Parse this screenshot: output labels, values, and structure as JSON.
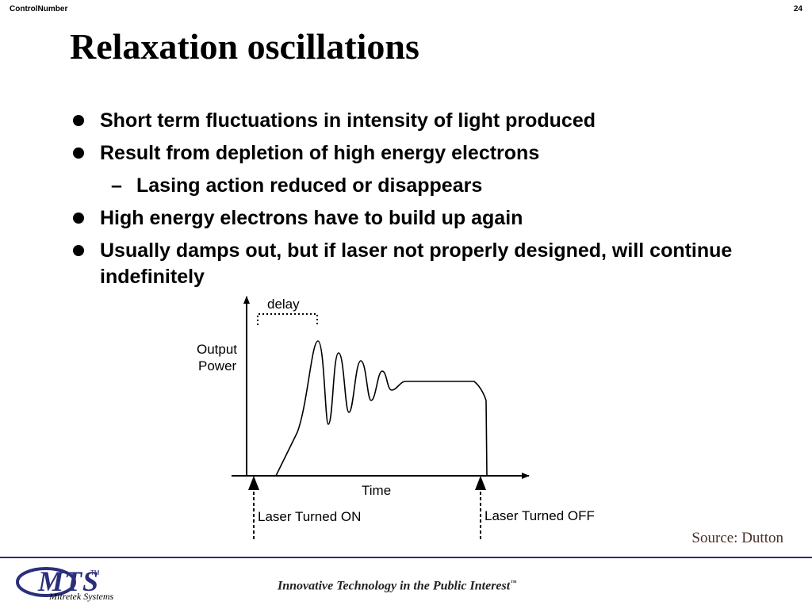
{
  "header": {
    "left": "ControlNumber",
    "right": "24"
  },
  "title": "Relaxation oscillations",
  "bullets": [
    "Short term fluctuations in intensity of light produced",
    "Result from depletion of high energy electrons",
    "Lasing action reduced or disappears",
    "High energy electrons have to build up again",
    "Usually damps out, but if laser not properly designed, will continue indefinitely"
  ],
  "figure": {
    "delay_label": "delay",
    "ylabel_line1": "Output",
    "ylabel_line2": "Power",
    "xlabel": "Time",
    "on_label": "Laser Turned ON",
    "off_label": "Laser Turned OFF"
  },
  "source": "Source: Dutton",
  "footer": {
    "logo": "MTS",
    "logo_tm": "TM",
    "logo_sub": "Mitretek Systems",
    "tagline": "Innovative Technology in the Public Interest",
    "tagline_tm": "™"
  }
}
